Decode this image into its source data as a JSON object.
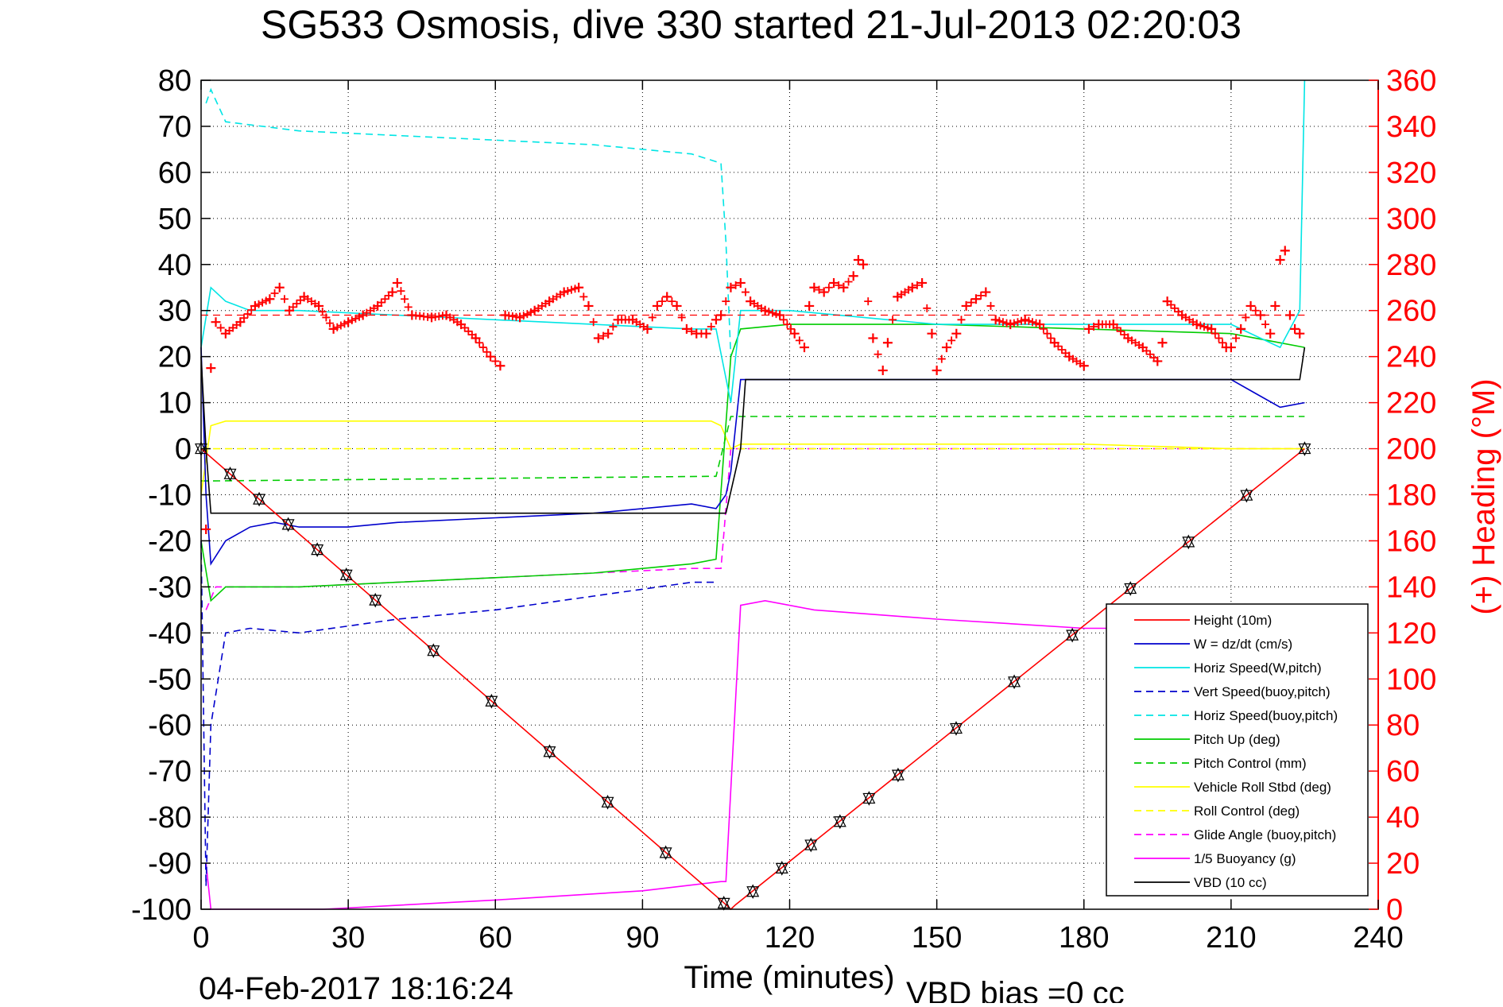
{
  "chart_data": {
    "type": "line",
    "title": "SG533 Osmosis, dive 330 started 21-Jul-2013 02:20:03",
    "xlabel": "Time (minutes)",
    "ylabel": "",
    "y2label": "(+) Heading (°M)",
    "xlim": [
      0,
      240
    ],
    "ylim": [
      -100,
      80
    ],
    "y2lim": [
      0,
      360
    ],
    "x_ticks": [
      "0",
      "30",
      "60",
      "90",
      "120",
      "150",
      "180",
      "210",
      "240"
    ],
    "y_ticks": [
      "80",
      "70",
      "60",
      "50",
      "40",
      "30",
      "20",
      "10",
      "0",
      "-10",
      "-20",
      "-30",
      "-40",
      "-50",
      "-60",
      "-70",
      "-80",
      "-90",
      "-100"
    ],
    "y2_ticks": [
      "360",
      "340",
      "320",
      "300",
      "280",
      "260",
      "240",
      "220",
      "200",
      "180",
      "160",
      "140",
      "120",
      "100",
      "80",
      "60",
      "40",
      "20",
      "0"
    ],
    "grid": true,
    "legend_position": "bottom-right",
    "footer_left": "04-Feb-2017 18:16:24",
    "footer_right": "VBD bias =0 cc",
    "series": [
      {
        "name": "Height (10m)",
        "color": "#ff0000",
        "style": "solid",
        "x": [
          0,
          107,
          108,
          109,
          225
        ],
        "y": [
          0,
          -99,
          -100,
          -99,
          0
        ]
      },
      {
        "name": "W = dz/dt (cm/s)",
        "color": "#0000cc",
        "style": "solid",
        "x": [
          0,
          1,
          2,
          5,
          10,
          15,
          20,
          30,
          40,
          60,
          80,
          100,
          105,
          107,
          108,
          109,
          110,
          120,
          150,
          180,
          210,
          215,
          220,
          225
        ],
        "y": [
          22,
          -10,
          -25,
          -20,
          -17,
          -16,
          -17,
          -17,
          -16,
          -15,
          -14,
          -12,
          -13,
          -10,
          -5,
          5,
          15,
          15,
          15,
          15,
          15,
          12,
          9,
          10
        ]
      },
      {
        "name": "Horiz Speed(W,pitch)",
        "color": "#00e5e5",
        "style": "solid",
        "x": [
          0,
          2,
          5,
          10,
          20,
          40,
          60,
          80,
          100,
          105,
          108,
          109,
          110,
          120,
          150,
          180,
          210,
          220,
          224,
          225
        ],
        "y": [
          22,
          35,
          32,
          30,
          30,
          29,
          28,
          27,
          26,
          26,
          10,
          20,
          30,
          30,
          27,
          27,
          27,
          22,
          30,
          80
        ]
      },
      {
        "name": "Vert Speed(buoy,pitch)",
        "color": "#0000cc",
        "style": "dashed",
        "x": [
          0,
          1,
          2,
          5,
          10,
          20,
          40,
          60,
          80,
          100,
          104,
          105
        ],
        "y": [
          -20,
          -95,
          -60,
          -40,
          -39,
          -40,
          -37,
          -35,
          -32,
          -29,
          -29,
          -29
        ]
      },
      {
        "name": "Horiz Speed(buoy,pitch)",
        "color": "#00e5e5",
        "style": "dashed",
        "x": [
          1,
          2,
          5,
          20,
          40,
          60,
          80,
          100,
          106,
          107,
          108
        ],
        "y": [
          75,
          78,
          71,
          69,
          68,
          67,
          66,
          64,
          62,
          45,
          20
        ]
      },
      {
        "name": "Pitch Up (deg)",
        "color": "#00cc00",
        "style": "solid",
        "x": [
          0,
          2,
          5,
          20,
          40,
          60,
          80,
          100,
          105,
          108,
          110,
          120,
          150,
          180,
          210,
          220,
          225
        ],
        "y": [
          -20,
          -33,
          -30,
          -30,
          -29,
          -28,
          -27,
          -25,
          -24,
          20,
          26,
          27,
          27,
          26,
          25,
          23,
          22
        ]
      },
      {
        "name": "Pitch Control (mm)",
        "color": "#00cc00",
        "style": "dashed",
        "x": [
          0,
          2,
          104,
          105,
          108,
          109,
          225
        ],
        "y": [
          -7,
          -7,
          -6,
          -6,
          7,
          7,
          7
        ]
      },
      {
        "name": "Vehicle Roll Stbd (deg)",
        "color": "#ffff00",
        "style": "solid",
        "x": [
          0,
          2,
          5,
          60,
          104,
          106,
          108,
          110,
          120,
          180,
          210,
          225
        ],
        "y": [
          -10,
          5,
          6,
          6,
          6,
          5,
          0,
          1,
          1,
          1,
          0,
          0
        ]
      },
      {
        "name": "Roll Control (deg)",
        "color": "#ffff00",
        "style": "dashed",
        "x": [
          0,
          225
        ],
        "y": [
          0,
          0
        ]
      },
      {
        "name": "Glide Angle (buoy,pitch)",
        "color": "#ff00ff",
        "style": "dashed",
        "x": [
          1,
          3,
          20,
          40,
          60,
          80,
          100,
          106,
          108,
          225
        ],
        "y": [
          -35,
          -30,
          -30,
          -29,
          -28,
          -27,
          -26,
          -26,
          0,
          0
        ]
      },
      {
        "name": "1/5 Buoyancy (g)",
        "color": "#ff00ff",
        "style": "solid",
        "x": [
          1,
          2,
          25,
          60,
          90,
          106,
          107,
          110,
          115,
          125,
          150,
          180,
          187
        ],
        "y": [
          -90,
          -100,
          -100,
          -98,
          -96,
          -94,
          -94,
          -34,
          -33,
          -35,
          -37,
          -39,
          -39
        ]
      },
      {
        "name": "VBD (10 cc)",
        "color": "#000000",
        "style": "solid",
        "x": [
          0,
          1,
          2,
          107,
          110,
          111,
          220,
          224,
          225
        ],
        "y": [
          20,
          0,
          -14,
          -14,
          0,
          15,
          15,
          15,
          22
        ]
      }
    ],
    "heading_series": {
      "name": "Heading",
      "color": "#ff0000",
      "marker": "+",
      "axis": "right",
      "x": [
        1,
        2,
        3,
        5,
        8,
        11,
        14,
        16,
        18,
        21,
        24,
        27,
        30,
        33,
        36,
        39,
        40,
        43,
        47,
        50,
        53,
        56,
        59,
        61,
        62,
        65,
        68,
        71,
        74,
        77,
        79,
        81,
        83,
        85,
        88,
        91,
        93,
        95,
        97,
        99,
        101,
        103,
        105,
        106,
        108,
        110,
        112,
        115,
        118,
        121,
        123,
        124,
        125,
        127,
        129,
        131,
        133,
        134,
        135,
        137,
        139,
        140,
        142,
        145,
        147,
        149,
        150,
        152,
        154,
        156,
        158,
        160,
        162,
        165,
        168,
        171,
        174,
        177,
        180,
        181,
        183,
        186,
        189,
        192,
        195,
        196,
        197,
        200,
        203,
        206,
        209,
        210,
        212,
        214,
        216,
        218,
        219,
        220,
        221,
        222,
        223,
        224
      ],
      "y": [
        165,
        235,
        255,
        250,
        255,
        262,
        265,
        270,
        260,
        266,
        262,
        252,
        255,
        258,
        262,
        268,
        272,
        258,
        257,
        258,
        254,
        248,
        240,
        236,
        258,
        257,
        260,
        264,
        268,
        270,
        262,
        248,
        250,
        256,
        256,
        252,
        262,
        266,
        262,
        252,
        250,
        250,
        256,
        258,
        270,
        272,
        264,
        260,
        258,
        250,
        244,
        262,
        270,
        268,
        272,
        270,
        275,
        282,
        280,
        248,
        234,
        246,
        266,
        270,
        272,
        250,
        234,
        244,
        250,
        262,
        265,
        268,
        256,
        254,
        256,
        254,
        246,
        240,
        236,
        252,
        254,
        254,
        248,
        244,
        238,
        246,
        264,
        258,
        254,
        252,
        244,
        244,
        252,
        262,
        258,
        250,
        262,
        282,
        286,
        258,
        252,
        250
      ]
    }
  }
}
